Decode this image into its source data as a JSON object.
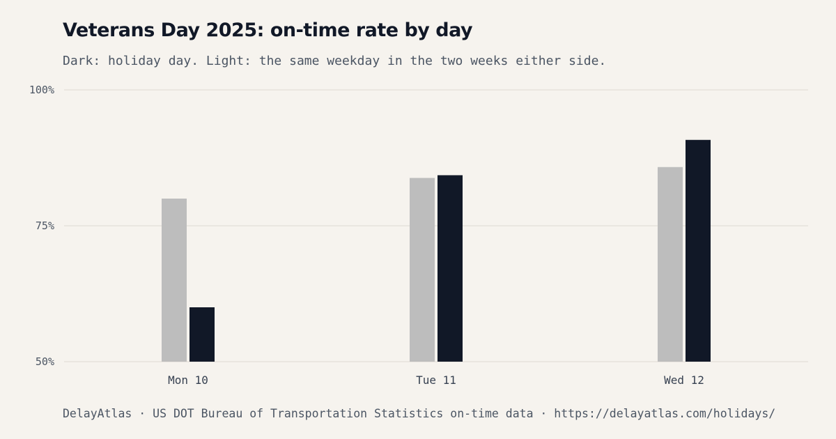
{
  "header": {
    "title": "Veterans Day 2025: on-time rate by day",
    "subtitle": "Dark: holiday day. Light: the same weekday in the two weeks either side."
  },
  "footer": {
    "text": "DelayAtlas · US DOT Bureau of Transportation Statistics on-time data · https://delayatlas.com/holidays/"
  },
  "colors": {
    "baseline": "#bdbdbd",
    "holiday": "#111827",
    "grid": "#e5e2dc"
  },
  "chart_data": {
    "type": "bar",
    "categories": [
      "Mon 10",
      "Tue 11",
      "Wed 12"
    ],
    "series": [
      {
        "values": [
          80,
          83.8,
          85.8
        ]
      },
      {
        "values": [
          60,
          84.3,
          90.8
        ]
      }
    ],
    "ylim": [
      50,
      100
    ],
    "yticks": [
      50,
      75,
      100
    ],
    "ytick_labels": [
      "50%",
      "75%",
      "100%"
    ],
    "grid": true
  }
}
